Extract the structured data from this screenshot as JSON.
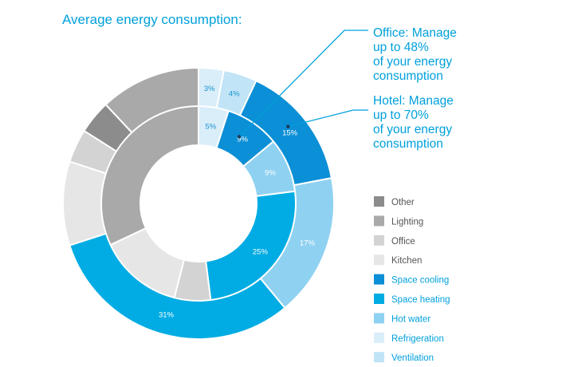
{
  "chart_data": {
    "type": "donut",
    "title": "Average energy consumption:",
    "categories": [
      "Other",
      "Lighting",
      "Office",
      "Kitchen",
      "Space cooling",
      "Space heating",
      "Hot water",
      "Refrigeration",
      "Ventilation"
    ],
    "colors": {
      "Other": "#8c8c8d",
      "Lighting": "#a9a9aa",
      "Office": "#d3d3d4",
      "Kitchen": "#e6e6e7",
      "Space cooling": "#0b8fd6",
      "Space heating": "#00ace3",
      "Hot water": "#8fd1f1",
      "Refrigeration": "#d9eef9",
      "Ventilation": "#c1e4f6"
    },
    "legend_text_colors": {
      "Other": "#555555",
      "Lighting": "#555555",
      "Office": "#555555",
      "Kitchen": "#555555",
      "Space cooling": "#00a0dc",
      "Space heating": "#00a0dc",
      "Hot water": "#00a0dc",
      "Refrigeration": "#00a0dc",
      "Ventilation": "#00a0dc"
    },
    "series": [
      {
        "name": "Hotel",
        "ring": "outer",
        "slices": [
          {
            "category": "Refrigeration",
            "value": 3,
            "label": "3%"
          },
          {
            "category": "Ventilation",
            "value": 4,
            "label": "4%"
          },
          {
            "category": "Space cooling",
            "value": 15,
            "label": "15%"
          },
          {
            "category": "Hot water",
            "value": 17,
            "label": "17%"
          },
          {
            "category": "Space heating",
            "value": 31,
            "label": "31%"
          },
          {
            "category": "Kitchen",
            "value": 10,
            "label": ""
          },
          {
            "category": "Office",
            "value": 4,
            "label": ""
          },
          {
            "category": "Other",
            "value": 4,
            "label": ""
          },
          {
            "category": "Lighting",
            "value": 12,
            "label": ""
          }
        ]
      },
      {
        "name": "Office",
        "ring": "inner",
        "slices": [
          {
            "category": "Refrigeration",
            "value": 5,
            "label": "5%"
          },
          {
            "category": "Space cooling",
            "value": 9,
            "label": "9%"
          },
          {
            "category": "Hot water",
            "value": 9,
            "label": "9%"
          },
          {
            "category": "Space heating",
            "value": 25,
            "label": "25%"
          },
          {
            "category": "Office",
            "value": 6,
            "label": ""
          },
          {
            "category": "Kitchen",
            "value": 14,
            "label": ""
          },
          {
            "category": "Lighting",
            "value": 32,
            "label": ""
          }
        ]
      }
    ],
    "legend": [
      "Other",
      "Lighting",
      "Office",
      "Kitchen",
      "Space cooling",
      "Space heating",
      "Hot water",
      "Refrigeration",
      "Ventilation"
    ],
    "annotations": [
      {
        "target": "Office",
        "lines": [
          "Office: Manage",
          "up to 48%",
          "of your energy",
          "consumption"
        ]
      },
      {
        "target": "Hotel",
        "lines": [
          "Hotel: Manage",
          "up to 70%",
          "of your energy",
          "consumption"
        ]
      }
    ]
  }
}
